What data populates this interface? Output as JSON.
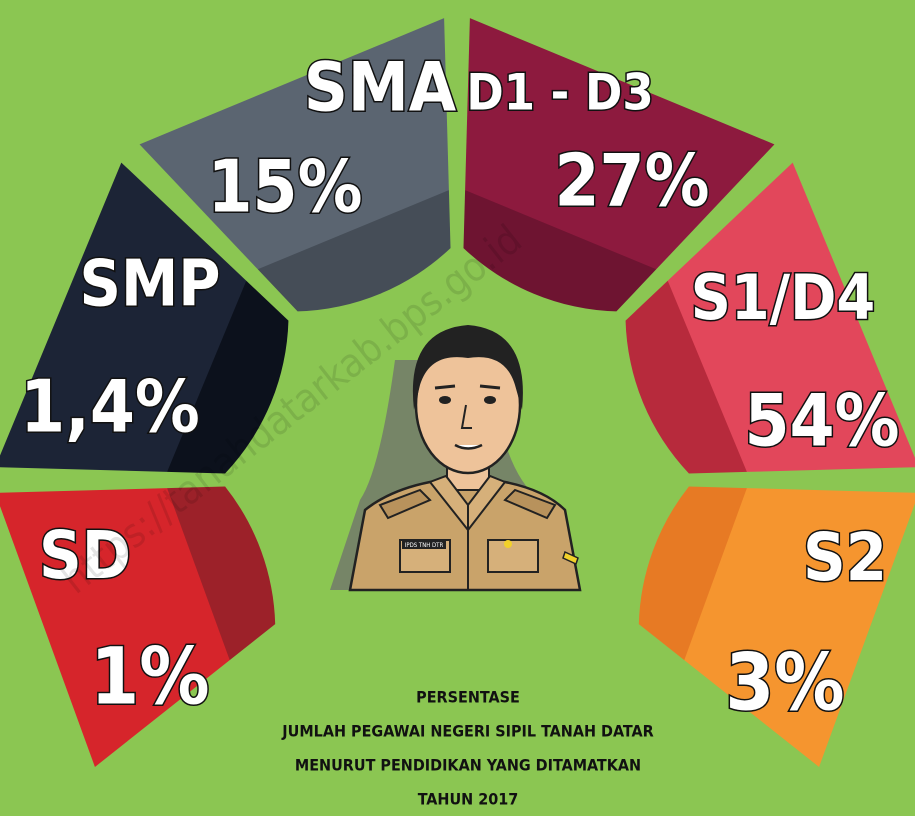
{
  "segments": [
    {
      "label": "SD",
      "value": "1%"
    },
    {
      "label": "SMP",
      "value": "1,4%"
    },
    {
      "label": "SMA",
      "value": "15%"
    },
    {
      "label": "D1 - D3",
      "value": "27%"
    },
    {
      "label": "S1/D4",
      "value": "54%"
    },
    {
      "label": "S2",
      "value": "3%"
    }
  ],
  "badge": "IPDS TNH DTR",
  "caption": [
    "PERSENTASE",
    "JUMLAH PEGAWAI NEGERI SIPIL TANAH DATAR",
    "MENURUT PENDIDIKAN YANG DITAMATKAN",
    "TAHUN 2017"
  ],
  "watermark": "https://tanahdatarkab.bps.go.id"
}
